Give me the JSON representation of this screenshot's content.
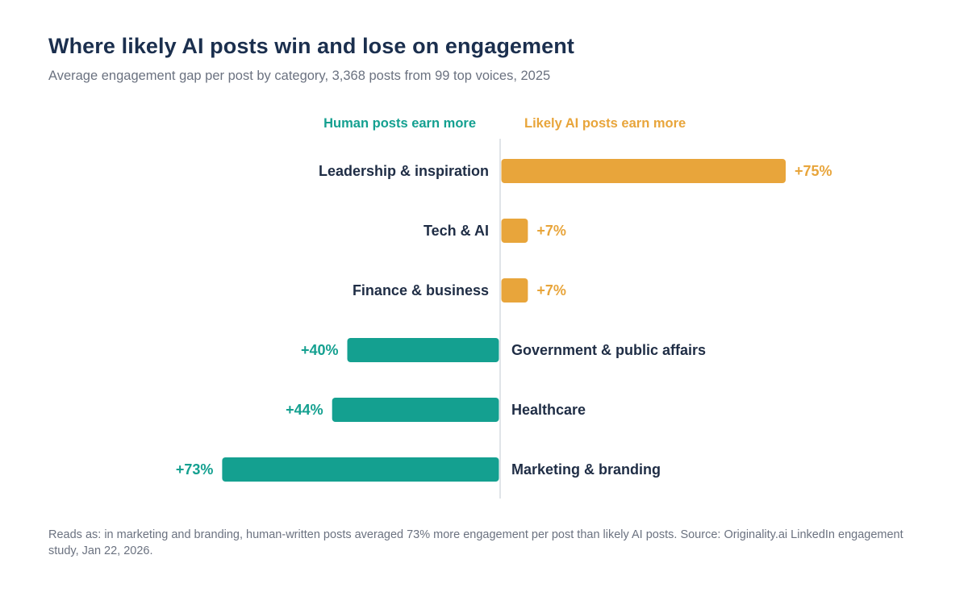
{
  "colors": {
    "human": "#14a090",
    "ai": "#e8a53b",
    "axis": "#d6dbe1",
    "label": "#1f2d45"
  },
  "chart_data": {
    "type": "bar",
    "orientation": "horizontal-diverging",
    "title": "Where likely AI posts win and lose on engagement",
    "subtitle": "Average engagement gap per post by category, 3,368 posts from 99 top voices, 2025",
    "header_left": "Human posts earn more",
    "header_right": "Likely AI posts earn more",
    "value_unit": "%",
    "xlim": [
      -100,
      100
    ],
    "grid": false,
    "categories": [
      "Leadership & inspiration",
      "Tech & AI",
      "Finance & business",
      "Government & public affairs",
      "Healthcare",
      "Marketing & branding"
    ],
    "values": [
      75,
      7,
      7,
      -40,
      -44,
      -73
    ],
    "value_labels": [
      "+75%",
      "+7%",
      "+7%",
      "+40%",
      "+44%",
      "+73%"
    ],
    "winner": [
      "ai",
      "ai",
      "ai",
      "human",
      "human",
      "human"
    ]
  },
  "footnote": "Reads as: in marketing and branding, human-written posts averaged 73% more engagement per post than likely AI posts. Source: Originality.ai LinkedIn engagement study, Jan 22, 2026."
}
